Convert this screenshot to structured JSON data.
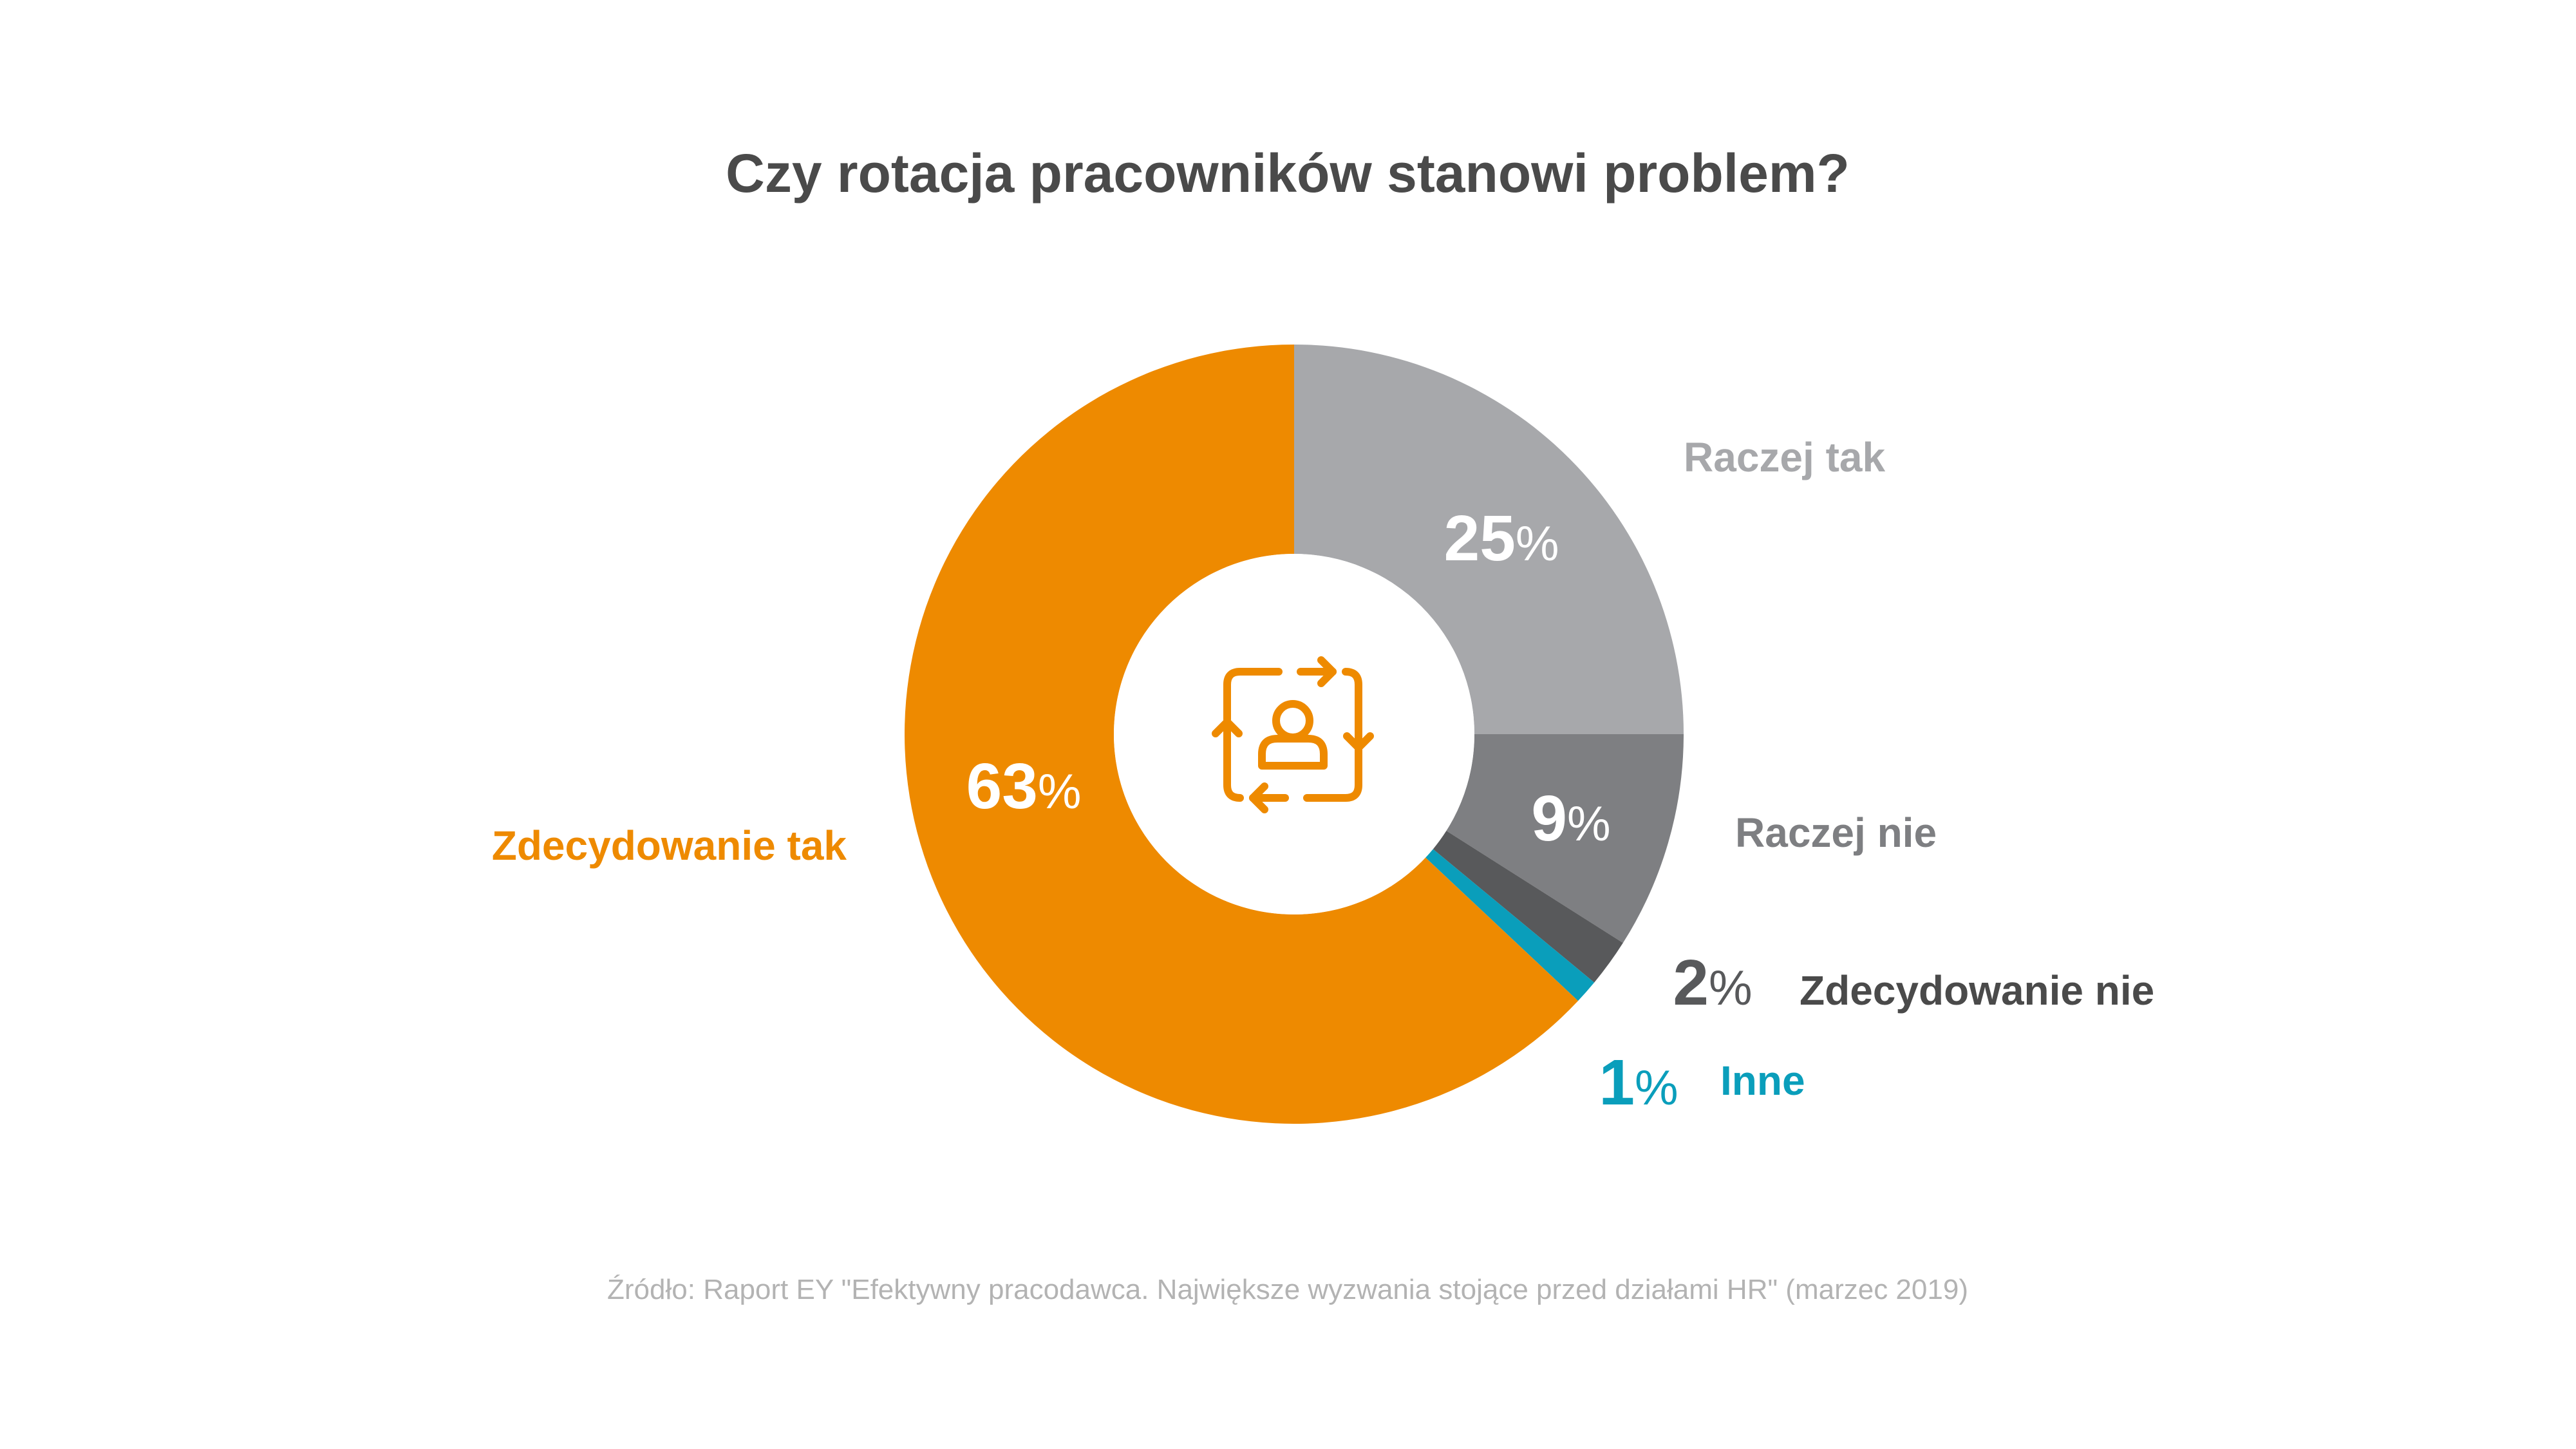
{
  "chart_data": {
    "type": "pie",
    "title": "Czy rotacja pracowników stanowi problem?",
    "donut": true,
    "slices": [
      {
        "label": "Raczej tak",
        "value": 25,
        "color": "#A7A8AB"
      },
      {
        "label": "Raczej nie",
        "value": 9,
        "color": "#7E7F82"
      },
      {
        "label": "Zdecydowanie nie",
        "value": 2,
        "color": "#58595B"
      },
      {
        "label": "Inne",
        "value": 1,
        "color": "#0A9EBB"
      },
      {
        "label": "Zdecydowanie tak",
        "value": 63,
        "color": "#EE8A00"
      }
    ],
    "value_suffix": "%",
    "center_icon": "employee-rotation-icon",
    "center_icon_color": "#EE8A00",
    "source": "Źródło: Raport EY \"Efektywny pracodawca. Największe wyzwania stojące przed działami HR\" (marzec 2019)"
  }
}
